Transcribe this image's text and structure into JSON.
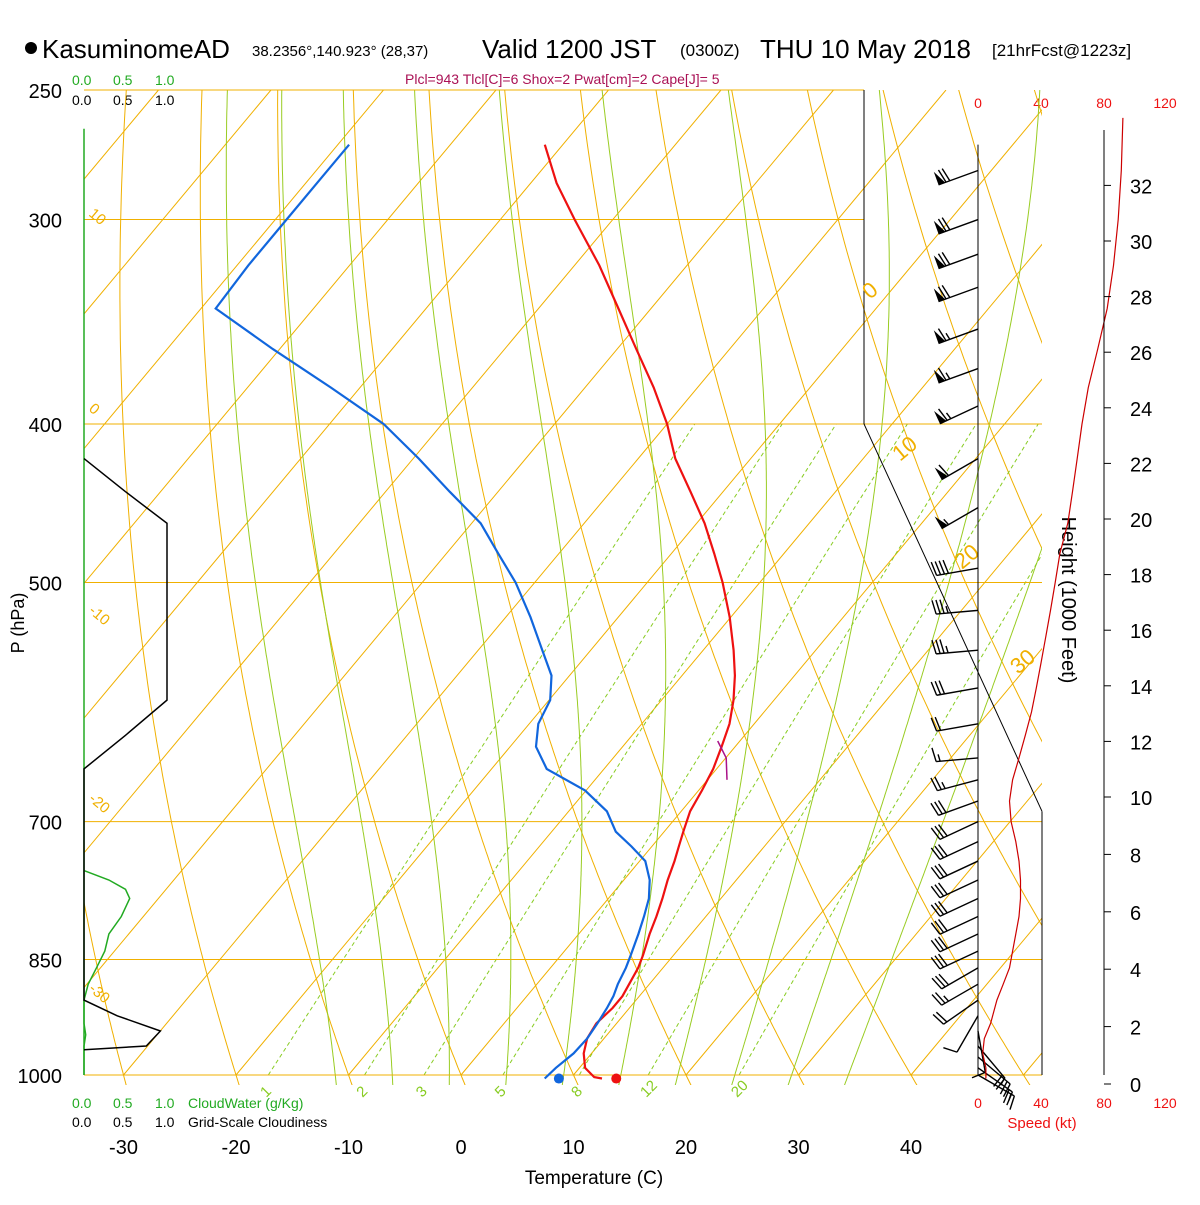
{
  "header": {
    "station": "KasuminomeAD",
    "coords": "38.2356°,140.923° (28,37)",
    "valid_main": "Valid 1200 JST",
    "valid_z": "(0300Z)",
    "date": "THU 10 May 2018",
    "forecast": "[21hrFcst@1223z]",
    "indices": "Plcl=943 Tlcl[C]=6 Shox=2 Pwat[cm]=2 Cape[J]= 5"
  },
  "colors": {
    "temperature": "#ee1111",
    "dewpoint": "#1166dd",
    "isotherm": "#f0b000",
    "dry_adiabat": "#f0b000",
    "moist_adiabat": "#99cc22",
    "mixing_ratio": "#88cc22",
    "cloud_water": "#22aa22",
    "cloudiness": "#000000",
    "height": "#cc0000",
    "wind": "#000000"
  },
  "chart_data": {
    "type": "skewt",
    "xlabel": "Temperature (C)",
    "ylabel": "P (hPa)",
    "xlim": [
      -35,
      48
    ],
    "x_ticks": [
      -30,
      -20,
      -10,
      0,
      10,
      20,
      30,
      40
    ],
    "x_tick_labels": [
      "-30",
      "-20",
      "-10",
      "0",
      "10",
      "20",
      "30",
      "40"
    ],
    "pressure_levels": [
      250,
      300,
      400,
      500,
      700,
      850,
      1000
    ],
    "pressure_labels": [
      "250",
      "300",
      "400",
      "500",
      "700",
      "850",
      "1000"
    ],
    "temperature_profile": {
      "pressure": [
        1005,
        1003,
        990,
        970,
        950,
        930,
        910,
        895,
        880,
        860,
        845,
        820,
        800,
        780,
        760,
        740,
        725,
        710,
        690,
        670,
        650,
        630,
        610,
        590,
        570,
        550,
        525,
        500,
        480,
        460,
        440,
        420,
        400,
        380,
        360,
        340,
        320,
        300,
        285,
        270
      ],
      "temperature": [
        12.8,
        12.0,
        10.5,
        9.3,
        8.5,
        8.2,
        8.5,
        8.5,
        8.2,
        7.8,
        7.3,
        6.3,
        5.6,
        4.8,
        3.9,
        3.1,
        2.4,
        1.7,
        0.8,
        0.3,
        -0.3,
        -1.2,
        -2.2,
        -3.6,
        -5.3,
        -7.3,
        -10.1,
        -13.3,
        -16.2,
        -19.3,
        -22.9,
        -26.7,
        -30.0,
        -33.9,
        -38.3,
        -42.9,
        -47.8,
        -53.4,
        -57.7,
        -61.6
      ]
    },
    "dewpoint_profile": {
      "pressure": [
        1005,
        990,
        970,
        950,
        930,
        910,
        895,
        880,
        860,
        845,
        820,
        800,
        780,
        760,
        740,
        725,
        710,
        690,
        670,
        650,
        630,
        610,
        590,
        570,
        550,
        525,
        500,
        480,
        460,
        440,
        420,
        400,
        380,
        360,
        340,
        320,
        300,
        285,
        270
      ],
      "dewpoint": [
        7.7,
        7.9,
        8.4,
        8.5,
        8.3,
        8.0,
        7.7,
        7.2,
        6.7,
        6.2,
        5.3,
        4.5,
        3.6,
        2.3,
        0.5,
        -1.8,
        -4.3,
        -6.6,
        -10.1,
        -15.1,
        -17.7,
        -19.2,
        -19.9,
        -21.6,
        -24.3,
        -27.8,
        -31.7,
        -35.4,
        -39.2,
        -44.3,
        -49.5,
        -55.2,
        -62.6,
        -70.6,
        -78.7,
        -79.0,
        -79.0,
        -79.0,
        -79.0
      ]
    },
    "parcel_segment": {
      "pressure": [
        660,
        640,
        625
      ],
      "temperature": [
        1.2,
        -0.5,
        -2.5
      ]
    },
    "surface_temperature": 13.8,
    "surface_dewpoint": 8.7,
    "mixing_ratio_labels": [
      "1",
      "2",
      "3",
      "5",
      "8",
      "12",
      "20"
    ],
    "mixing_ratio_values": [
      1,
      2,
      3,
      5,
      8,
      12,
      20
    ],
    "theta_labels": [
      "10",
      "0",
      "-10",
      "-20",
      "-30"
    ],
    "thetae_labels": [
      "0",
      "10",
      "20",
      "30"
    ],
    "cloud_water": {
      "label": "CloudWater (g/Kg)",
      "ticks": [
        "0.0",
        "0.5",
        "1.0"
      ],
      "pressure": [
        1000,
        960,
        945,
        930,
        915,
        900,
        880,
        860,
        840,
        820,
        800,
        780,
        770,
        760,
        750
      ],
      "value": [
        0.0,
        0.0,
        0.02,
        0.0,
        0.0,
        0.0,
        0.05,
        0.15,
        0.25,
        0.3,
        0.45,
        0.55,
        0.5,
        0.3,
        0.0
      ]
    },
    "cloudiness": {
      "label": "Grid-Scale Cloudiness",
      "ticks": [
        "0.0",
        "0.5",
        "1.0"
      ],
      "pressure": [
        965,
        960,
        940,
        920,
        900,
        650,
        620,
        590,
        560,
        540,
        520,
        490,
        460,
        440,
        420
      ],
      "value": [
        0.0,
        0.75,
        0.92,
        0.4,
        0.0,
        0.0,
        0.5,
        1.0,
        1.0,
        1.0,
        1.0,
        1.0,
        1.0,
        0.5,
        0.0
      ]
    },
    "wind": {
      "speed_label": "Speed (kt)",
      "speed_ticks": [
        "0",
        "40",
        "80",
        "120"
      ],
      "barbs": [
        {
          "p": 1000,
          "dir": 120,
          "spd": 15
        },
        {
          "p": 990,
          "dir": 125,
          "spd": 20
        },
        {
          "p": 975,
          "dir": 130,
          "spd": 25
        },
        {
          "p": 960,
          "dir": 140,
          "spd": 20
        },
        {
          "p": 940,
          "dir": 170,
          "spd": 10
        },
        {
          "p": 920,
          "dir": 210,
          "spd": 10
        },
        {
          "p": 900,
          "dir": 235,
          "spd": 20
        },
        {
          "p": 880,
          "dir": 240,
          "spd": 25
        },
        {
          "p": 860,
          "dir": 240,
          "spd": 28
        },
        {
          "p": 840,
          "dir": 245,
          "spd": 28
        },
        {
          "p": 820,
          "dir": 245,
          "spd": 30
        },
        {
          "p": 800,
          "dir": 245,
          "spd": 30
        },
        {
          "p": 780,
          "dir": 245,
          "spd": 30
        },
        {
          "p": 760,
          "dir": 245,
          "spd": 30
        },
        {
          "p": 740,
          "dir": 245,
          "spd": 30
        },
        {
          "p": 720,
          "dir": 245,
          "spd": 30
        },
        {
          "p": 700,
          "dir": 245,
          "spd": 30
        },
        {
          "p": 680,
          "dir": 250,
          "spd": 30
        },
        {
          "p": 660,
          "dir": 255,
          "spd": 25
        },
        {
          "p": 640,
          "dir": 265,
          "spd": 15
        },
        {
          "p": 610,
          "dir": 260,
          "spd": 20
        },
        {
          "p": 580,
          "dir": 260,
          "spd": 30
        },
        {
          "p": 550,
          "dir": 265,
          "spd": 35
        },
        {
          "p": 520,
          "dir": 265,
          "spd": 35
        },
        {
          "p": 490,
          "dir": 260,
          "spd": 40
        },
        {
          "p": 450,
          "dir": 240,
          "spd": 55
        },
        {
          "p": 420,
          "dir": 240,
          "spd": 60
        },
        {
          "p": 390,
          "dir": 245,
          "spd": 65
        },
        {
          "p": 370,
          "dir": 250,
          "spd": 65
        },
        {
          "p": 350,
          "dir": 250,
          "spd": 65
        },
        {
          "p": 330,
          "dir": 250,
          "spd": 70
        },
        {
          "p": 315,
          "dir": 250,
          "spd": 70
        },
        {
          "p": 300,
          "dir": 250,
          "spd": 70
        },
        {
          "p": 280,
          "dir": 250,
          "spd": 70
        }
      ],
      "speed_profile": {
        "pressure": [
          1005,
          990,
          970,
          950,
          930,
          900,
          880,
          860,
          840,
          820,
          800,
          780,
          760,
          740,
          720,
          700,
          680,
          660,
          640,
          620,
          600,
          580,
          560,
          540,
          520,
          500,
          480,
          460,
          440,
          420,
          400,
          380,
          360,
          340,
          320,
          300,
          280,
          260
        ],
        "speed": [
          5,
          5,
          3,
          4,
          8,
          12,
          16,
          20,
          22,
          24,
          26,
          27,
          27,
          26,
          24,
          21,
          20,
          22,
          26,
          30,
          34,
          37,
          40,
          43,
          46,
          49,
          52,
          57,
          60,
          63,
          66,
          70,
          76,
          82,
          86,
          89,
          91,
          92
        ]
      }
    },
    "height": {
      "label": "Height (1000 Feet)",
      "ticks": [
        0,
        2,
        4,
        6,
        8,
        10,
        12,
        14,
        16,
        18,
        20,
        22,
        24,
        26,
        28,
        30,
        32
      ],
      "tick_labels": [
        "0",
        "2",
        "4",
        "6",
        "8",
        "10",
        "12",
        "14",
        "16",
        "18",
        "20",
        "22",
        "24",
        "26",
        "28",
        "30",
        "32"
      ]
    }
  }
}
